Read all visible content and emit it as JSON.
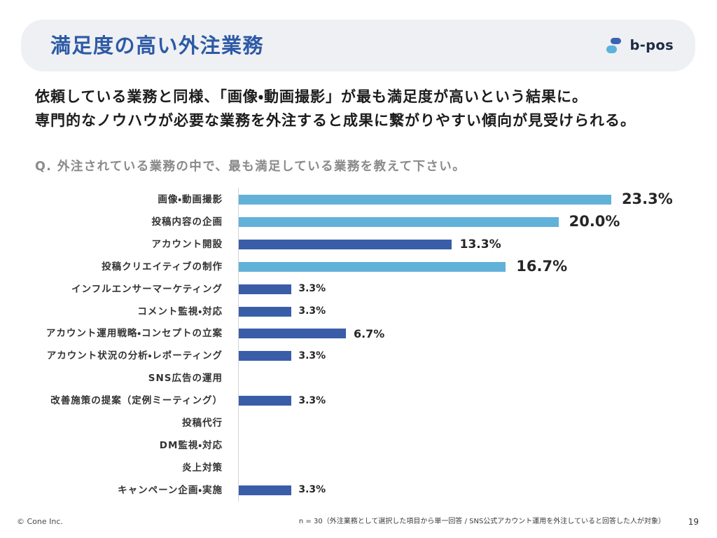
{
  "header": {
    "title": "満足度の高い外注業務",
    "logo_text": "b-pos",
    "logo_icon": "b-pos-logo-icon"
  },
  "summary": {
    "lines": [
      "依頼している業務と同様、「画像・動画撮影」が最も満足度が高いという結果に。",
      "専門的なノウハウが必要な業務を外注すると成果に繋がりやすい傾向が見受けられる。"
    ]
  },
  "question": "Q. 外注されている業務の中で、最も満足している業務を教えて下さい。",
  "chart_data": {
    "type": "bar",
    "orientation": "horizontal",
    "categories": [
      "画像・動画撮影",
      "投稿内容の企画",
      "アカウント開設",
      "投稿クリエイティブの制作",
      "インフルエンサーマーケティング",
      "コメント監視・対応",
      "アカウント運用戦略・コンセプトの立案",
      "アカウント状況の分析・レポーティング",
      "SNS広告の運用",
      "改善施策の提案（定例ミーティング）",
      "投稿代行",
      "DM監視・対応",
      "炎上対策",
      "キャンペーン企画・実施"
    ],
    "values": [
      23.3,
      20.0,
      13.3,
      16.7,
      3.3,
      3.3,
      6.7,
      3.3,
      0,
      3.3,
      0,
      0,
      0,
      3.3
    ],
    "value_labels": [
      "23.3%",
      "20.0%",
      "13.3%",
      "16.7%",
      "3.3%",
      "3.3%",
      "6.7%",
      "3.3%",
      null,
      "3.3%",
      null,
      null,
      null,
      "3.3%"
    ],
    "bar_colors": [
      "#62b1d9",
      "#62b1d9",
      "#3a5da8",
      "#62b1d9",
      "#3a5da8",
      "#3a5da8",
      "#3a5da8",
      "#3a5da8",
      null,
      "#3a5da8",
      null,
      null,
      null,
      "#3a5da8"
    ],
    "grid": false
  },
  "footer": {
    "copyright": "© Cone Inc.",
    "note": "n = 30（外注業務として選択した項目から単一回答 / SNS公式アカウント運用を外注していると回答した人が対象）",
    "page_number": "19"
  },
  "theme": {
    "title_color": "#2d5aa6",
    "header_background": "#eff0f3",
    "text_color": "#1c1c1c",
    "question_color": "#8a8a8a",
    "logo_dark_blue": "#3a64b0",
    "logo_light_blue": "#5cb2dc"
  }
}
